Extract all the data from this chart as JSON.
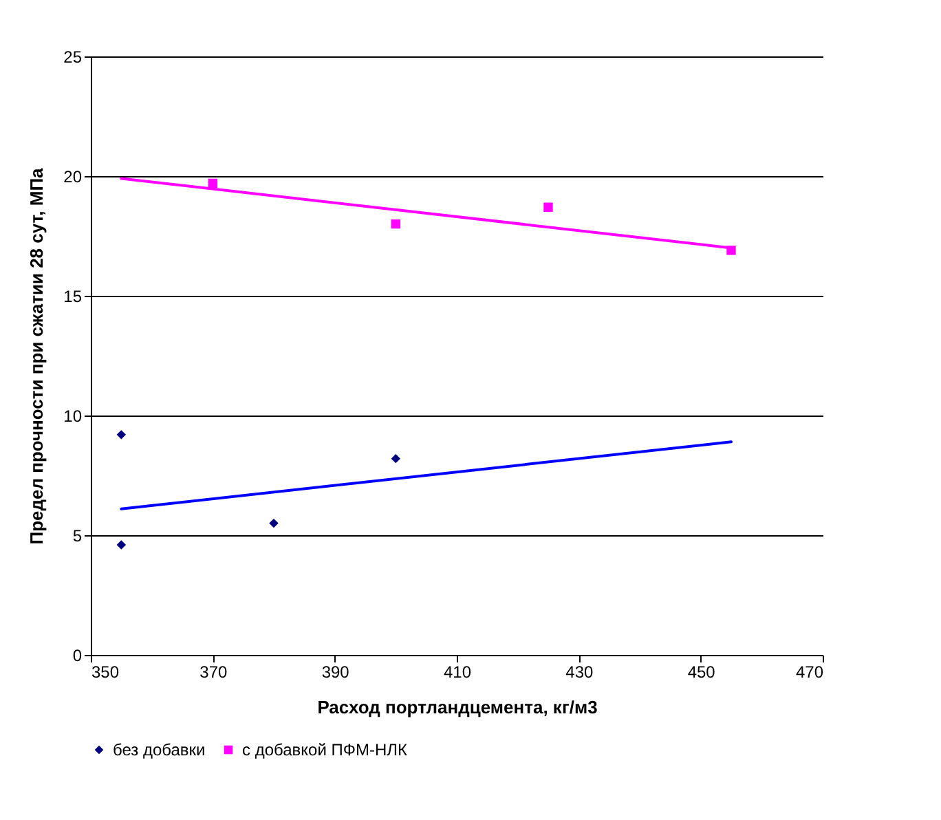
{
  "chart_data": {
    "type": "scatter",
    "xlabel": "Расход портландцемента, кг/м3",
    "ylabel": "Предел прочности при сжатии 28 сут, МПа",
    "xlim": [
      350,
      470
    ],
    "xticks": [
      350,
      370,
      390,
      410,
      430,
      450,
      470
    ],
    "ylim": [
      0,
      25
    ],
    "yticks": [
      0,
      5,
      10,
      15,
      20,
      25
    ],
    "grid": "y",
    "legend": "bottom",
    "series": [
      {
        "name": "без добавки",
        "color": "#000080",
        "marker": "diamond",
        "x": [
          355,
          355,
          380,
          400
        ],
        "values": [
          9.2,
          4.6,
          5.5,
          8.2
        ]
      },
      {
        "name": "с добавкой ПФМ-НЛК",
        "color": "#ff00ff",
        "marker": "square",
        "x": [
          370,
          400,
          425,
          455
        ],
        "values": [
          19.7,
          18.0,
          18.7,
          16.9
        ]
      },
      {
        "type": "line",
        "color": "#0000ff",
        "line_style": "solid",
        "x": [
          355,
          455
        ],
        "values": [
          6.1,
          8.9
        ]
      },
      {
        "type": "line",
        "color": "#ff00ff",
        "line_style": "solid",
        "x": [
          355,
          455
        ],
        "values": [
          19.9,
          17.0
        ]
      }
    ]
  }
}
